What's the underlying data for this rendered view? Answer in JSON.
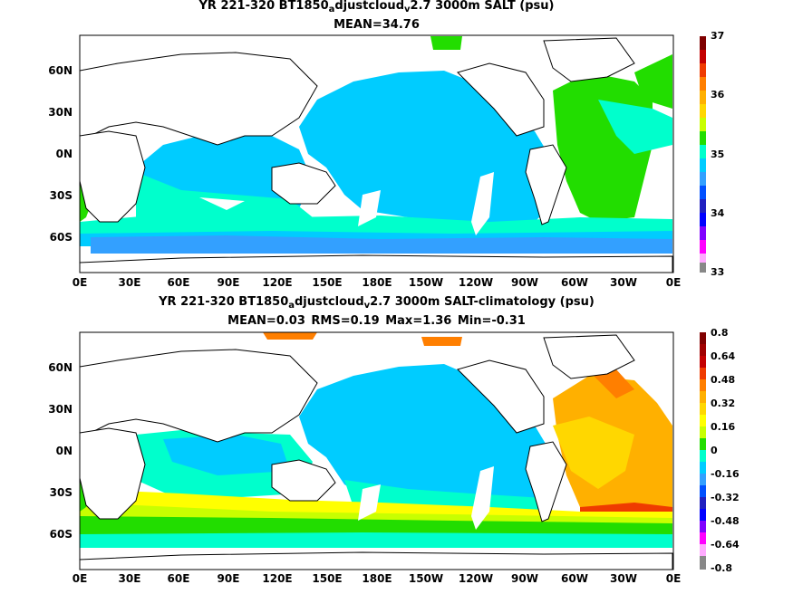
{
  "maps": [
    {
      "title_pre": "YR 221-320 BT1850",
      "title_sub1": "a",
      "title_mid": "djustcloud",
      "title_sub2": "v",
      "title_post": "2.7 3000m SALT (psu)",
      "stats": "MEAN=34.76",
      "colorbar_labels": [
        "37",
        "36",
        "35",
        "34",
        "33"
      ],
      "colorbar_colors": [
        "#7f0000",
        "#c40000",
        "#ef3b00",
        "#ff7f00",
        "#ffb000",
        "#ffd700",
        "#ffff00",
        "#c8ff00",
        "#22dd00",
        "#00ffcc",
        "#00ccff",
        "#33a0ff",
        "#0050ff",
        "#2020c0",
        "#8000ff",
        "#ff00ff",
        "#ffaaff",
        "#888888"
      ]
    },
    {
      "title_pre": "YR 221-320 BT1850",
      "title_sub1": "a",
      "title_mid": "djustcloud",
      "title_sub2": "v",
      "title_post": "2.7 3000m SALT-climatology (psu)",
      "stats": "MEAN=0.03   RMS=0.19   Max=1.36   Min=-0.31",
      "colorbar_labels": [
        "0.8",
        "0.64",
        "0.48",
        "0.32",
        "0.16",
        "0",
        "-0.16",
        "-0.32",
        "-0.48",
        "-0.64",
        "-0.8"
      ],
      "colorbar_colors": [
        "#7f0000",
        "#c40000",
        "#ef3b00",
        "#ff7f00",
        "#ffb000",
        "#ffd700",
        "#ffff00",
        "#c8ff00",
        "#22dd00",
        "#00ffcc",
        "#00ccff",
        "#33a0ff",
        "#0050ff",
        "#2020c0",
        "#8000ff",
        "#ff00ff",
        "#ffaaff",
        "#888888"
      ]
    }
  ],
  "lat_labels": [
    "60N",
    "30N",
    "0N",
    "30S",
    "60S"
  ],
  "lon_labels": [
    "0E",
    "30E",
    "60E",
    "90E",
    "120E",
    "150E",
    "180E",
    "150W",
    "120W",
    "90W",
    "60W",
    "30W",
    "0E"
  ],
  "colors": {
    "ocean_cyan": "#00ccff",
    "ocean_blue": "#33a0ff",
    "ocean_aqua": "#00ffcc",
    "green": "#22dd00",
    "lightgreen": "#c8ff00",
    "yellow": "#ffff00",
    "orange": "#ffb000",
    "darkorange": "#ff7f00",
    "red": "#ef3b00",
    "land": "#ffffff"
  }
}
